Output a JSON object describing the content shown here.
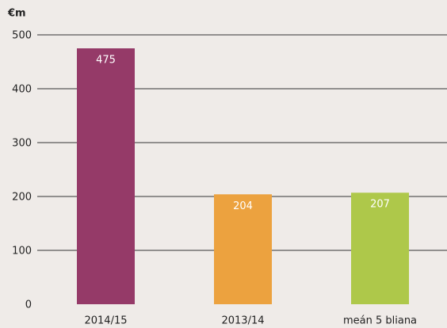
{
  "chart_data": {
    "type": "bar",
    "y_label": "€m",
    "categories": [
      "2014/15",
      "2013/14",
      "meán 5 bliana"
    ],
    "values": [
      475,
      204,
      207
    ],
    "colors": [
      "#953a68",
      "#eca23f",
      "#aec84a"
    ],
    "ylim": [
      0,
      500
    ],
    "yticks": [
      0,
      100,
      200,
      300,
      400,
      500
    ],
    "grid": true
  }
}
